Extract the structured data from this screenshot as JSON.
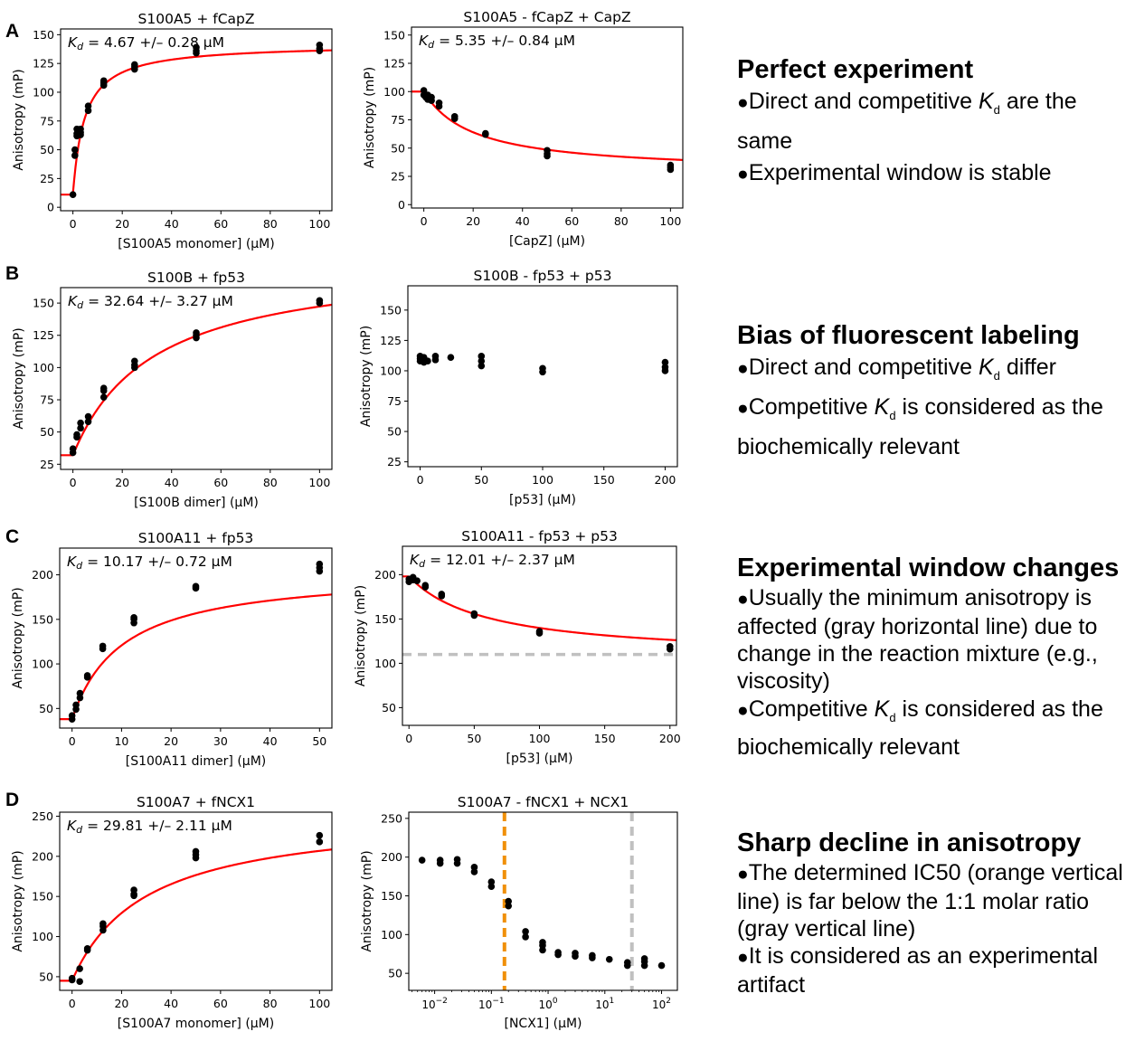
{
  "panels": [
    {
      "letter": "A"
    },
    {
      "letter": "B"
    },
    {
      "letter": "C"
    },
    {
      "letter": "D"
    }
  ],
  "notes": [
    {
      "title": "Perfect experiment",
      "lines": [
        {
          "bullet": "●",
          "pre": "Direct and competitive ",
          "kd": "K",
          "kd_sub": "d",
          "post": " are the same"
        },
        {
          "bullet": "●",
          "pre": "Experimental window is stable"
        }
      ]
    },
    {
      "title": "Bias of fluorescent labeling",
      "lines": [
        {
          "bullet": "●",
          "pre": "Direct and competitive ",
          "kd": "K",
          "kd_sub": "d",
          "post": " differ"
        },
        {
          "bullet": "●",
          "pre": "Competitive ",
          "kd": "K",
          "kd_sub": "d",
          "post": " is considered as the biochemically relevant"
        }
      ]
    },
    {
      "title": "Experimental window changes",
      "lines": [
        {
          "bullet": "●",
          "pre": "Usually the minimum anisotropy is affected (gray horizontal line) due to change in the reaction mixture (e.g., viscosity)"
        },
        {
          "bullet": "●",
          "pre": "Competitive ",
          "kd": "K",
          "kd_sub": "d",
          "post": " is considered as the biochemically relevant"
        }
      ]
    },
    {
      "title": "Sharp decline in anisotropy",
      "lines": [
        {
          "bullet": "●",
          "pre": "The determined IC50 (orange vertical line) is far below the 1:1 molar ratio (gray vertical line)"
        },
        {
          "bullet": "●",
          "pre": "It is considered as an experimental artifact"
        }
      ]
    }
  ],
  "colors": {
    "fit": "#ff0000",
    "points": "#000000",
    "orange": "#f0900a",
    "gray": "#c0c0c0"
  },
  "chart_data": [
    {
      "type": "scatter",
      "title": "S100A5 + fCapZ",
      "xlabel": "[S100A5 monomer] (μM)",
      "ylabel": "Anisotropy (mP)",
      "xlim": [
        -5,
        105
      ],
      "ylim": [
        -3,
        155
      ],
      "xticks": [
        0,
        20,
        40,
        60,
        80,
        100
      ],
      "yticks": [
        0,
        25,
        50,
        75,
        100,
        125,
        150
      ],
      "kd_text": {
        "main": "K",
        "sub": "d",
        "rest": " = 4.67 +/– 0.28 μM"
      },
      "fit": {
        "model": "binding",
        "params": [
          11,
          142,
          4.67
        ]
      },
      "points": [
        [
          0,
          11
        ],
        [
          0.8,
          45
        ],
        [
          0.8,
          50
        ],
        [
          1.6,
          62
        ],
        [
          1.6,
          64
        ],
        [
          1.6,
          68
        ],
        [
          3.1,
          63
        ],
        [
          3.1,
          65
        ],
        [
          3.1,
          68
        ],
        [
          6.2,
          84
        ],
        [
          6.2,
          88
        ],
        [
          12.5,
          106
        ],
        [
          12.5,
          108
        ],
        [
          12.5,
          110
        ],
        [
          25,
          120
        ],
        [
          25,
          122
        ],
        [
          25,
          124
        ],
        [
          50,
          134
        ],
        [
          50,
          136
        ],
        [
          50,
          139
        ],
        [
          100,
          136
        ],
        [
          100,
          138
        ],
        [
          100,
          141
        ]
      ]
    },
    {
      "type": "scatter",
      "title": "S100A5 - fCapZ + CapZ",
      "xlabel": "[CapZ] (μM)",
      "ylabel": "Anisotropy (mP)",
      "xlim": [
        -5,
        105
      ],
      "ylim": [
        -3,
        157
      ],
      "xticks": [
        0,
        20,
        40,
        60,
        80,
        100
      ],
      "yticks": [
        0,
        25,
        50,
        75,
        100,
        125,
        150
      ],
      "kd_text": {
        "main": "K",
        "sub": "d",
        "rest": " = 5.35 +/– 0.84 μM"
      },
      "fit": {
        "model": "competitive",
        "params": [
          100,
          28,
          20
        ]
      },
      "points": [
        [
          0,
          97
        ],
        [
          0,
          101
        ],
        [
          0.8,
          95
        ],
        [
          1.6,
          93
        ],
        [
          1.6,
          97
        ],
        [
          3.1,
          92
        ],
        [
          3.1,
          95
        ],
        [
          6.2,
          87
        ],
        [
          6.2,
          90
        ],
        [
          12.5,
          76
        ],
        [
          12.5,
          78
        ],
        [
          25,
          62
        ],
        [
          25,
          63
        ],
        [
          50,
          43
        ],
        [
          50,
          45
        ],
        [
          50,
          48
        ],
        [
          100,
          31
        ],
        [
          100,
          33
        ],
        [
          100,
          35
        ]
      ]
    },
    {
      "type": "scatter",
      "title": "S100B + fp53",
      "xlabel": "[S100B dimer]  (μM)",
      "ylabel": "Anisotropy (mP)",
      "xlim": [
        -5,
        105
      ],
      "ylim": [
        21,
        162
      ],
      "xticks": [
        0,
        20,
        40,
        60,
        80,
        100
      ],
      "yticks": [
        25,
        50,
        75,
        100,
        125,
        150
      ],
      "kd_text": {
        "main": "K",
        "sub": "d",
        "rest": " = 32.64 +/– 3.27 μM"
      },
      "fit": {
        "model": "binding",
        "params": [
          32,
          185,
          32.64
        ]
      },
      "points": [
        [
          0,
          34
        ],
        [
          0,
          37
        ],
        [
          1.6,
          46
        ],
        [
          1.6,
          48
        ],
        [
          3.1,
          53
        ],
        [
          3.1,
          57
        ],
        [
          6.2,
          58
        ],
        [
          6.2,
          62
        ],
        [
          12.5,
          77
        ],
        [
          12.5,
          82
        ],
        [
          12.5,
          84
        ],
        [
          25,
          100
        ],
        [
          25,
          102
        ],
        [
          25,
          105
        ],
        [
          50,
          123
        ],
        [
          50,
          125
        ],
        [
          50,
          127
        ],
        [
          100,
          150
        ],
        [
          100,
          152
        ]
      ]
    },
    {
      "type": "scatter",
      "title": "S100B - fp53 + p53",
      "xlabel": "[p53] (μM)",
      "ylabel": "Anisotropy (mP)",
      "xlim": [
        -10,
        210
      ],
      "ylim": [
        21,
        170
      ],
      "xticks": [
        0,
        50,
        100,
        150,
        200
      ],
      "yticks": [
        25,
        50,
        75,
        100,
        125,
        150
      ],
      "points": [
        [
          0,
          108
        ],
        [
          0,
          110
        ],
        [
          0,
          112
        ],
        [
          1.6,
          109
        ],
        [
          3.1,
          107
        ],
        [
          3.1,
          111
        ],
        [
          6.2,
          108
        ],
        [
          12.5,
          109
        ],
        [
          12.5,
          112
        ],
        [
          25,
          111
        ],
        [
          50,
          104
        ],
        [
          50,
          108
        ],
        [
          50,
          112
        ],
        [
          100,
          99
        ],
        [
          100,
          102
        ],
        [
          200,
          100
        ],
        [
          200,
          103
        ],
        [
          200,
          107
        ]
      ]
    },
    {
      "type": "scatter",
      "title": "S100A11 + fp53",
      "xlabel": "[S100A11 dimer] (μM)",
      "ylabel": "Anisotropy (mP)",
      "xlim": [
        -2.5,
        52.5
      ],
      "ylim": [
        28,
        230
      ],
      "xticks": [
        0,
        10,
        20,
        30,
        40,
        50
      ],
      "yticks": [
        50,
        100,
        150,
        200
      ],
      "kd_text": {
        "main": "K",
        "sub": "d",
        "rest": " = 10.17 +/– 0.72 μM"
      },
      "fit": {
        "model": "binding",
        "params": [
          38,
          205,
          10.17
        ]
      },
      "points": [
        [
          0,
          38
        ],
        [
          0,
          42
        ],
        [
          0.8,
          49
        ],
        [
          0.8,
          54
        ],
        [
          1.6,
          62
        ],
        [
          1.6,
          67
        ],
        [
          3.1,
          85
        ],
        [
          3.1,
          87
        ],
        [
          6.2,
          117
        ],
        [
          6.2,
          120
        ],
        [
          12.5,
          146
        ],
        [
          12.5,
          150
        ],
        [
          12.5,
          152
        ],
        [
          25,
          185
        ],
        [
          25,
          187
        ],
        [
          50,
          204
        ],
        [
          50,
          208
        ],
        [
          50,
          212
        ]
      ]
    },
    {
      "type": "scatter",
      "title": "S100A11 - fp53 + p53",
      "xlabel": "[p53] (μM)",
      "ylabel": "Anisotropy (mP)",
      "xlim": [
        -5,
        205
      ],
      "ylim": [
        30,
        232
      ],
      "xticks": [
        0,
        50,
        100,
        150,
        200
      ],
      "yticks": [
        50,
        100,
        150,
        200
      ],
      "kd_text": {
        "main": "K",
        "sub": "d",
        "rest": " = 12.01 +/– 2.37 μM"
      },
      "fit": {
        "model": "competitive",
        "params": [
          198,
          105,
          60
        ]
      },
      "hline": {
        "y": 110,
        "color": "gray"
      },
      "points": [
        [
          0,
          192
        ],
        [
          0,
          195
        ],
        [
          3.1,
          194
        ],
        [
          3.1,
          197
        ],
        [
          6.2,
          193
        ],
        [
          12.5,
          186
        ],
        [
          12.5,
          188
        ],
        [
          25,
          176
        ],
        [
          25,
          178
        ],
        [
          50,
          154
        ],
        [
          50,
          156
        ],
        [
          100,
          134
        ],
        [
          100,
          136
        ],
        [
          200,
          116
        ],
        [
          200,
          119
        ]
      ]
    },
    {
      "type": "scatter",
      "title": "S100A7 + fNCX1",
      "xlabel": "[S100A7 monomer] (μM)",
      "ylabel": "Anisotropy (mP)",
      "xlim": [
        -5,
        105
      ],
      "ylim": [
        33,
        255
      ],
      "xticks": [
        0,
        20,
        40,
        60,
        80,
        100
      ],
      "yticks": [
        50,
        100,
        150,
        200,
        250
      ],
      "kd_text": {
        "main": "K",
        "sub": "d",
        "rest": " = 29.81 +/– 2.11 μM"
      },
      "fit": {
        "model": "binding",
        "params": [
          45,
          255,
          29.81
        ]
      },
      "points": [
        [
          0,
          46
        ],
        [
          0,
          48
        ],
        [
          3.1,
          44
        ],
        [
          3.1,
          60
        ],
        [
          6.2,
          83
        ],
        [
          6.2,
          85
        ],
        [
          12.5,
          108
        ],
        [
          12.5,
          113
        ],
        [
          12.5,
          116
        ],
        [
          25,
          151
        ],
        [
          25,
          153
        ],
        [
          25,
          158
        ],
        [
          50,
          198
        ],
        [
          50,
          202
        ],
        [
          50,
          206
        ],
        [
          100,
          218
        ],
        [
          100,
          226
        ]
      ]
    },
    {
      "type": "scatter",
      "title": "S100A7 - fNCX1 + NCX1",
      "xlabel": "[NCX1] (μM)",
      "ylabel": "Anisotropy (mP)",
      "xscale": "log",
      "xlim": [
        0.0035,
        190
      ],
      "ylim": [
        28,
        258
      ],
      "xticks": [
        0.01,
        0.1,
        1,
        10,
        100
      ],
      "xticklabels": [
        [
          "10",
          "−2"
        ],
        [
          "10",
          "−1"
        ],
        [
          "10",
          "0"
        ],
        [
          "10",
          "1"
        ],
        [
          "10",
          "2"
        ]
      ],
      "yticks": [
        50,
        100,
        150,
        200,
        250
      ],
      "vlines": [
        {
          "x": 0.17,
          "color": "orange"
        },
        {
          "x": 30,
          "color": "gray"
        }
      ],
      "points": [
        [
          0.006,
          196
        ],
        [
          0.0125,
          192
        ],
        [
          0.0125,
          196
        ],
        [
          0.025,
          192
        ],
        [
          0.025,
          197
        ],
        [
          0.05,
          181
        ],
        [
          0.05,
          187
        ],
        [
          0.1,
          162
        ],
        [
          0.1,
          168
        ],
        [
          0.2,
          137
        ],
        [
          0.2,
          143
        ],
        [
          0.4,
          97
        ],
        [
          0.4,
          104
        ],
        [
          0.8,
          80
        ],
        [
          0.8,
          86
        ],
        [
          0.8,
          90
        ],
        [
          1.5,
          74
        ],
        [
          1.5,
          77
        ],
        [
          3,
          72
        ],
        [
          3,
          76
        ],
        [
          6,
          70
        ],
        [
          6,
          73
        ],
        [
          12,
          68
        ],
        [
          25,
          60
        ],
        [
          25,
          64
        ],
        [
          50,
          60
        ],
        [
          50,
          65
        ],
        [
          50,
          69
        ],
        [
          100,
          60
        ]
      ]
    }
  ]
}
